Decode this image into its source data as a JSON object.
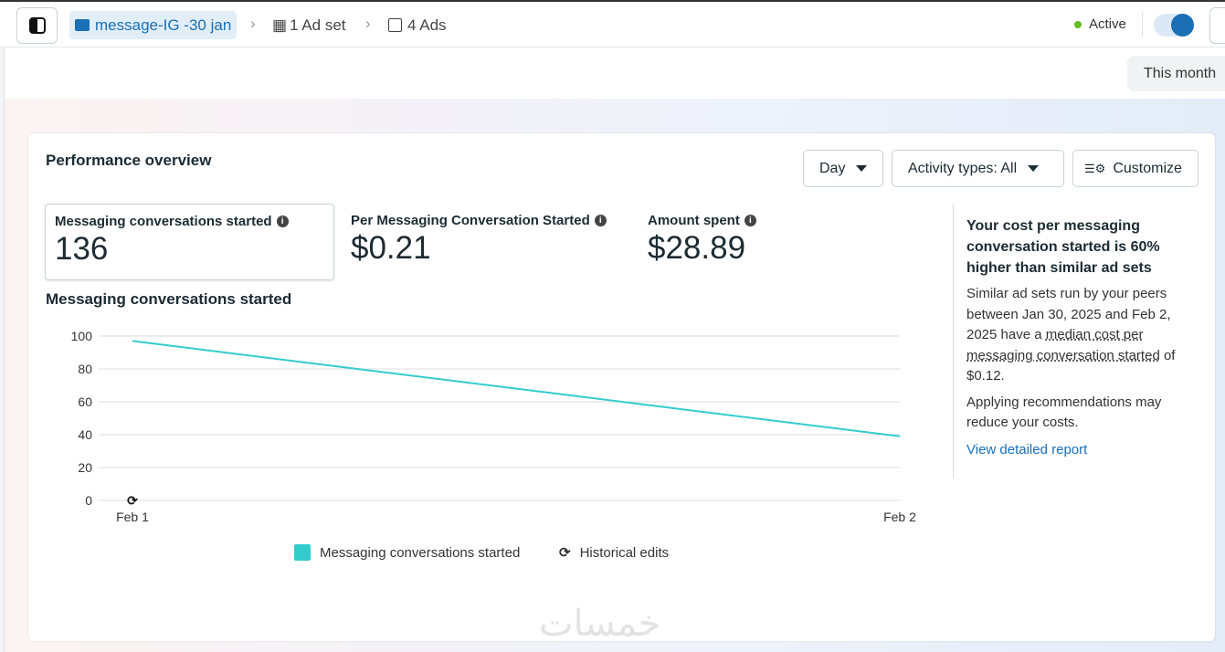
{
  "header": {
    "campaign": "message-IG -30 jan",
    "adset": "1 Ad set",
    "ads": "4 Ads",
    "status": "Active",
    "toggle_on": true,
    "date_range": "This month"
  },
  "card": {
    "title": "Performance overview",
    "day_btn": "Day",
    "activity_btn": "Activity types: All",
    "customize_btn": "Customize"
  },
  "metrics": [
    {
      "label": "Messaging conversations started",
      "value": "136"
    },
    {
      "label": "Per Messaging Conversation Started",
      "value": "$0.21"
    },
    {
      "label": "Amount spent",
      "value": "$28.89"
    }
  ],
  "insight": {
    "title": "Your cost per messaging conversation started is 60% higher than similar ad sets",
    "body_pre": "Similar ad sets run by your peers between Jan 30, 2025 and Feb 2, 2025 have a ",
    "body_link": "median cost per messaging conversation started",
    "body_post": " of $0.12.",
    "body2": "Applying recommendations may reduce your costs.",
    "link": "View detailed report"
  },
  "watermark": "خمسات",
  "colors": {
    "accent": "#1a6fb5",
    "series": "#33cccc",
    "active": "#5fbf1f"
  },
  "chart_data": {
    "type": "line",
    "title": "Messaging conversations started",
    "categories": [
      "Feb 1",
      "Feb 2"
    ],
    "series": [
      {
        "name": "Messaging conversations started",
        "values": [
          97,
          39
        ]
      }
    ],
    "yticks": [
      "0",
      "20",
      "40",
      "60",
      "80",
      "100"
    ],
    "ylim": [
      0,
      100
    ],
    "grid": true,
    "legend": [
      "Messaging conversations started",
      "Historical edits"
    ],
    "legend_position": "bottom"
  }
}
